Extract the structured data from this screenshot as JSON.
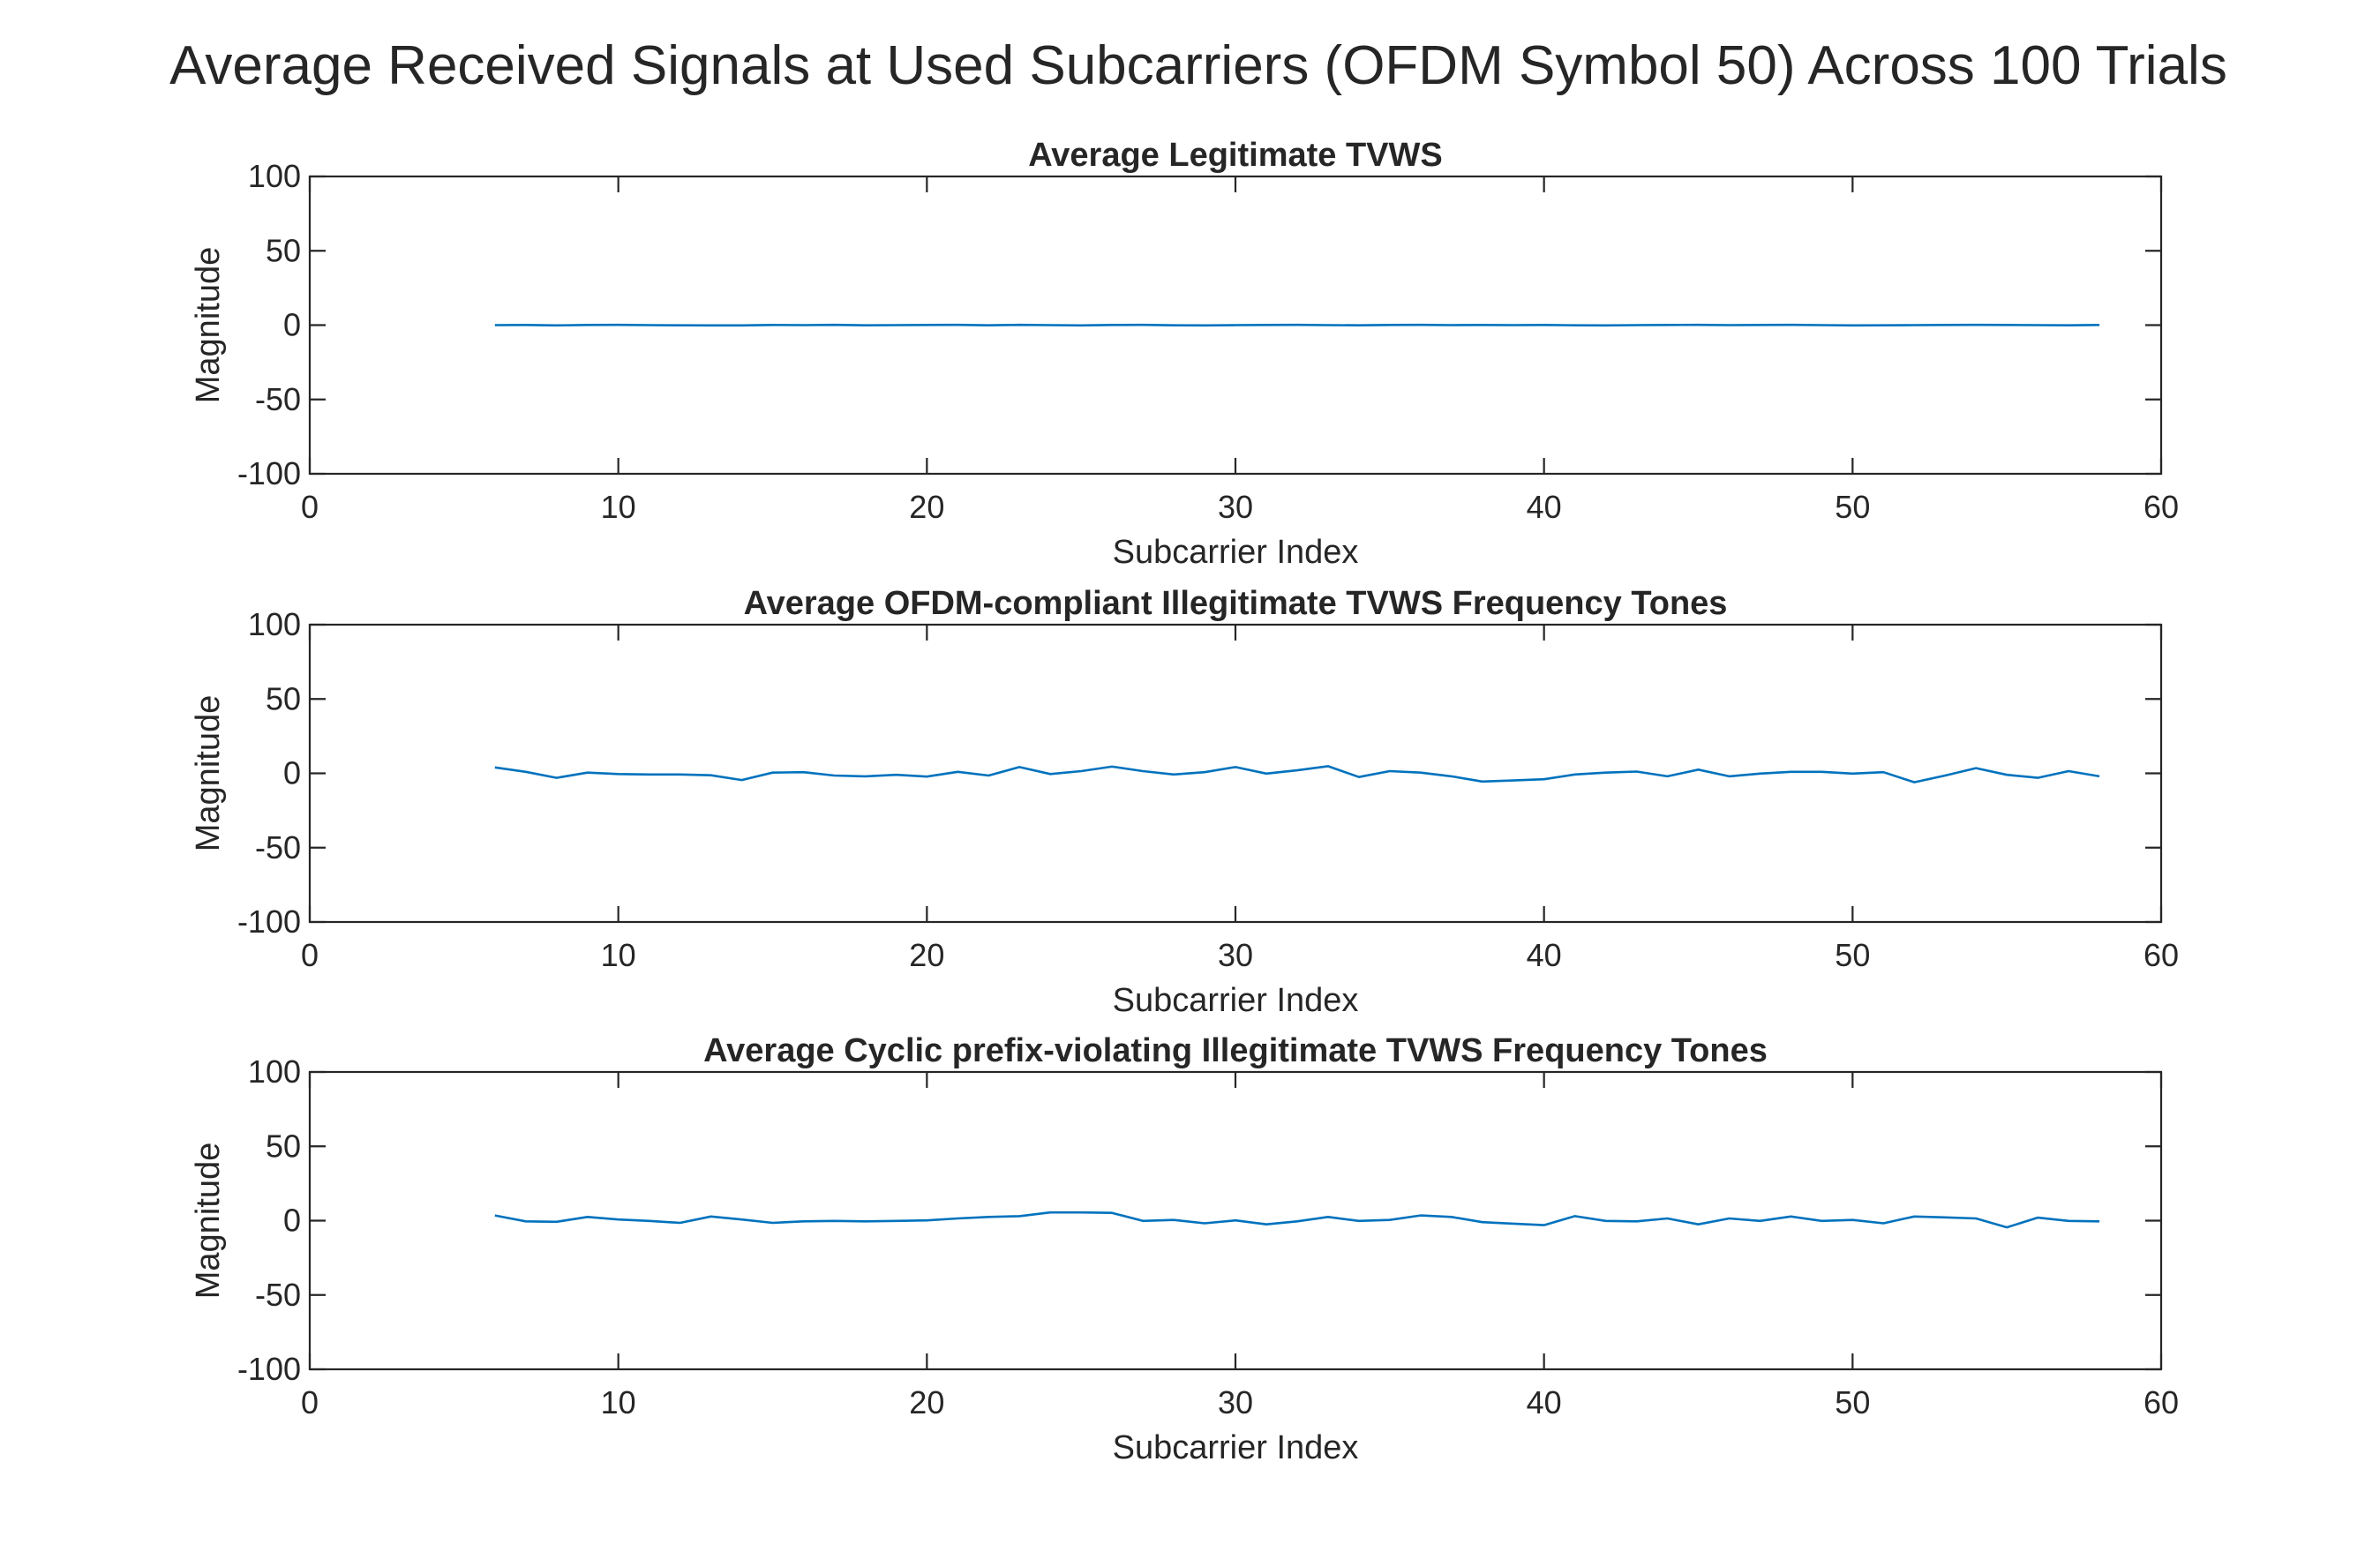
{
  "figure_title": "Average Received Signals at Used Subcarriers (OFDM Symbol 50) Across 100 Trials",
  "line_color": "#0072BD",
  "axis_color": "#262626",
  "chart_data": [
    {
      "type": "line",
      "title": "Average Legitimate TVWS",
      "xlabel": "Subcarrier Index",
      "ylabel": "Magnitude",
      "xlim": [
        0,
        60
      ],
      "ylim": [
        -100,
        100
      ],
      "xticks": [
        0,
        10,
        20,
        30,
        40,
        50,
        60
      ],
      "yticks": [
        -100,
        -50,
        0,
        50,
        100
      ],
      "grid": false,
      "x": [
        6,
        7,
        8,
        9,
        10,
        11,
        12,
        13,
        14,
        15,
        16,
        17,
        18,
        19,
        20,
        21,
        22,
        23,
        24,
        25,
        26,
        27,
        28,
        29,
        30,
        31,
        32,
        33,
        34,
        35,
        36,
        37,
        38,
        39,
        40,
        41,
        42,
        43,
        44,
        45,
        46,
        47,
        48,
        49,
        50,
        51,
        52,
        53,
        54,
        55,
        56,
        57,
        58
      ],
      "series": [
        {
          "values": [
            0.0,
            0.1,
            -0.2,
            0.1,
            0.2,
            0.0,
            -0.1,
            -0.2,
            -0.2,
            0.1,
            0.0,
            0.2,
            -0.1,
            0.0,
            0.1,
            0.2,
            -0.1,
            0.2,
            0.0,
            -0.2,
            0.1,
            0.2,
            -0.1,
            -0.2,
            0.0,
            0.1,
            0.2,
            0.0,
            -0.1,
            0.1,
            0.2,
            0.0,
            0.1,
            0.0,
            0.1,
            -0.1,
            -0.2,
            0.0,
            0.1,
            0.2,
            0.0,
            0.1,
            0.2,
            0.0,
            -0.2,
            -0.1,
            0.0,
            0.1,
            0.2,
            0.1,
            0.0,
            -0.1,
            0.1
          ]
        }
      ]
    },
    {
      "type": "line",
      "title": "Average OFDM-compliant Illegitimate TVWS Frequency Tones",
      "xlabel": "Subcarrier Index",
      "ylabel": "Magnitude",
      "xlim": [
        0,
        60
      ],
      "ylim": [
        -100,
        100
      ],
      "xticks": [
        0,
        10,
        20,
        30,
        40,
        50,
        60
      ],
      "yticks": [
        -100,
        -50,
        0,
        50,
        100
      ],
      "grid": false,
      "x": [
        6,
        7,
        8,
        9,
        10,
        11,
        12,
        13,
        14,
        15,
        16,
        17,
        18,
        19,
        20,
        21,
        22,
        23,
        24,
        25,
        26,
        27,
        28,
        29,
        30,
        31,
        32,
        33,
        34,
        35,
        36,
        37,
        38,
        39,
        40,
        41,
        42,
        43,
        44,
        45,
        46,
        47,
        48,
        49,
        50,
        51,
        52,
        53,
        54,
        55,
        56,
        57,
        58
      ],
      "series": [
        {
          "values": [
            4.0,
            1.0,
            -3.0,
            0.5,
            -0.5,
            -0.8,
            -0.8,
            -1.3,
            -4.5,
            0.5,
            0.8,
            -1.5,
            -2.0,
            -1.0,
            -2.2,
            1.0,
            -1.5,
            4.2,
            -0.5,
            1.5,
            4.5,
            1.5,
            -0.8,
            0.8,
            4.2,
            -0.2,
            2.0,
            4.8,
            -2.5,
            1.5,
            0.5,
            -2.0,
            -5.5,
            -4.8,
            -4.0,
            -0.8,
            0.5,
            1.2,
            -2.0,
            2.5,
            -2.0,
            -0.2,
            1.0,
            1.0,
            -0.2,
            0.8,
            -6.0,
            -1.5,
            3.5,
            -1.0,
            -3.0,
            1.5,
            -2.0
          ]
        }
      ]
    },
    {
      "type": "line",
      "title": "Average Cyclic prefix-violating Illegitimate TVWS Frequency Tones",
      "xlabel": "Subcarrier Index",
      "ylabel": "Magnitude",
      "xlim": [
        0,
        60
      ],
      "ylim": [
        -100,
        100
      ],
      "xticks": [
        0,
        10,
        20,
        30,
        40,
        50,
        60
      ],
      "yticks": [
        -100,
        -50,
        0,
        50,
        100
      ],
      "grid": false,
      "x": [
        6,
        7,
        8,
        9,
        10,
        11,
        12,
        13,
        14,
        15,
        16,
        17,
        18,
        19,
        20,
        21,
        22,
        23,
        24,
        25,
        26,
        27,
        28,
        29,
        30,
        31,
        32,
        33,
        34,
        35,
        36,
        37,
        38,
        39,
        40,
        41,
        42,
        43,
        44,
        45,
        46,
        47,
        48,
        49,
        50,
        51,
        52,
        53,
        54,
        55,
        56,
        57,
        58
      ],
      "series": [
        {
          "values": [
            3.5,
            -0.5,
            -0.8,
            2.5,
            0.8,
            -0.2,
            -1.5,
            2.8,
            0.8,
            -1.5,
            -0.5,
            -0.2,
            -0.5,
            -0.2,
            0.2,
            1.5,
            2.5,
            3.0,
            5.5,
            5.5,
            5.2,
            -0.2,
            0.5,
            -1.8,
            0.2,
            -2.5,
            -0.5,
            2.5,
            -0.2,
            0.5,
            3.5,
            2.5,
            -1.0,
            -2.0,
            -3.0,
            3.0,
            -0.2,
            -0.5,
            1.5,
            -2.5,
            1.5,
            -0.2,
            2.8,
            -0.2,
            0.5,
            -1.8,
            2.8,
            2.2,
            1.5,
            -4.5,
            2.0,
            -0.2,
            -0.5
          ]
        }
      ]
    }
  ]
}
